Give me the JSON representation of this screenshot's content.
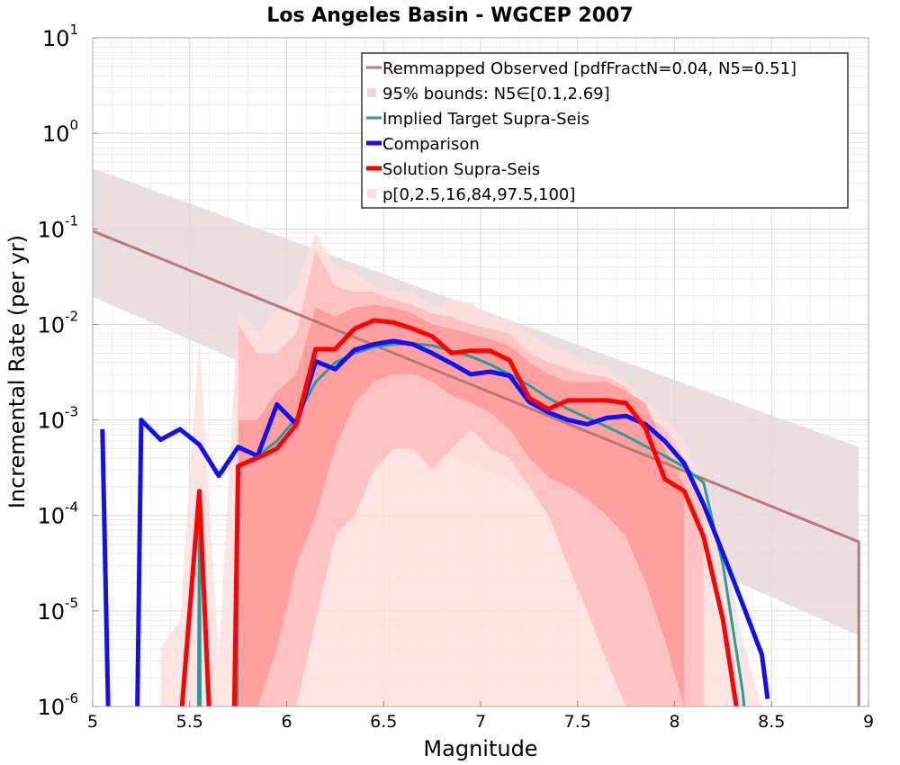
{
  "chart_data": {
    "type": "line",
    "title": "Los Angeles Basin - WGCEP 2007",
    "xlabel": "Magnitude",
    "ylabel": "Incremental Rate (per yr)",
    "xlim": [
      5,
      9
    ],
    "ylim": [
      1e-06,
      10
    ],
    "yscale": "log",
    "grid": true,
    "legend_position": "top-right",
    "x_ticks": [
      "5",
      "5.5",
      "6",
      "6.5",
      "7",
      "7.5",
      "8",
      "8.5",
      "9"
    ],
    "y_ticks": [
      {
        "base": "10",
        "exp": "-6"
      },
      {
        "base": "10",
        "exp": "-5"
      },
      {
        "base": "10",
        "exp": "-4"
      },
      {
        "base": "10",
        "exp": "-3"
      },
      {
        "base": "10",
        "exp": "-2"
      },
      {
        "base": "10",
        "exp": "-1"
      },
      {
        "base": "10",
        "exp": "0"
      },
      {
        "base": "10",
        "exp": "1"
      }
    ],
    "colors": {
      "observed": "#b87878",
      "observed_bounds": "#e8d8da",
      "target": "#2a9a9a",
      "comparison": "#1010f0",
      "overlap": "#5010c0",
      "solution": "#ff0000",
      "band_outer": "#ffdddd",
      "band_mid": "#ffb8b8",
      "band_inner": "#ff9090"
    },
    "legend": [
      {
        "label": "Remmapped Observed [pdfFractN=0.04, N5=0.51]",
        "color": "#b87878",
        "kind": "line",
        "width": 3
      },
      {
        "label": "95% bounds: N5∈[0.1,2.69]",
        "color": "#e8d8da",
        "kind": "box"
      },
      {
        "label": "Implied Target Supra-Seis",
        "color": "#2a9a9a",
        "kind": "line",
        "width": 3
      },
      {
        "label": "Comparison",
        "color": "#1010f0",
        "kind": "line",
        "width": 5
      },
      {
        "label": "Solution Supra-Seis",
        "color": "#ff0000",
        "kind": "line",
        "width": 5
      },
      {
        "label": "p[0,2.5,16,84,97.5,100]",
        "color": "#ffdddd",
        "kind": "box"
      }
    ],
    "series": [
      {
        "name": "Remmapped Observed [pdfFractN=0.04, N5=0.51]",
        "x": [
          5.0,
          8.95,
          8.95
        ],
        "y": [
          0.095,
          5.3e-05,
          5e-07
        ]
      },
      {
        "name": "95% bounds: N5∈[0.1,2.69]",
        "x": [
          5.0,
          8.95
        ],
        "y_low": [
          0.0195,
          5.5e-06
        ],
        "y_high": [
          0.43,
          0.00052
        ]
      },
      {
        "name": "Implied Target Supra-Seis",
        "x": [
          5.545,
          5.55,
          5.555,
          5.745,
          5.75,
          5.85,
          5.95,
          6.05,
          6.15,
          6.25,
          6.35,
          6.45,
          6.55,
          6.65,
          6.75,
          6.85,
          6.95,
          7.05,
          7.15,
          7.25,
          7.35,
          7.45,
          7.55,
          7.65,
          7.75,
          7.85,
          7.95,
          8.05,
          8.15,
          8.25,
          8.35,
          8.36
        ],
        "y": [
          5e-07,
          0.00015,
          5e-07,
          5e-07,
          0.00033,
          0.00042,
          0.0006,
          0.00105,
          0.0025,
          0.004,
          0.005,
          0.0058,
          0.0062,
          0.0063,
          0.006,
          0.0053,
          0.0046,
          0.0038,
          0.003,
          0.0023,
          0.0017,
          0.0013,
          0.00105,
          0.00085,
          0.00068,
          0.00053,
          0.00042,
          0.00032,
          0.00022,
          3e-05,
          1.5e-06,
          5e-07
        ]
      },
      {
        "name": "Comparison",
        "x": [
          5.05,
          5.08,
          5.23,
          5.25,
          5.35,
          5.45,
          5.55,
          5.65,
          5.75,
          5.85,
          5.95,
          6.05,
          6.15,
          6.25,
          6.35,
          6.45,
          6.55,
          6.65,
          6.75,
          6.85,
          6.95,
          7.05,
          7.15,
          7.25,
          7.35,
          7.45,
          7.55,
          7.65,
          7.75,
          7.85,
          7.95,
          8.05,
          8.15,
          8.25,
          8.35,
          8.45,
          8.48
        ],
        "y": [
          0.0008,
          5e-07,
          5e-07,
          0.001,
          0.00062,
          0.0008,
          0.00055,
          0.00026,
          0.00052,
          0.00042,
          0.00145,
          0.0009,
          0.0041,
          0.0034,
          0.0054,
          0.0062,
          0.0067,
          0.0062,
          0.005,
          0.0039,
          0.003,
          0.0032,
          0.0029,
          0.00155,
          0.0012,
          0.001,
          0.0009,
          0.00105,
          0.0011,
          0.0009,
          0.0006,
          0.00035,
          0.00013,
          4e-05,
          1.2e-05,
          3.5e-06,
          1.2e-06
        ]
      },
      {
        "name": "Solution Supra-Seis",
        "x": [
          5.46,
          5.55,
          5.6,
          5.73,
          5.75,
          5.85,
          5.95,
          6.05,
          6.15,
          6.25,
          6.35,
          6.45,
          6.55,
          6.65,
          6.75,
          6.85,
          6.95,
          7.05,
          7.15,
          7.25,
          7.35,
          7.45,
          7.55,
          7.65,
          7.75,
          7.85,
          7.95,
          8.05,
          8.15,
          8.25,
          8.32
        ],
        "y": [
          5e-07,
          0.00018,
          5e-07,
          5e-07,
          0.00033,
          0.0004,
          0.0005,
          0.0009,
          0.0055,
          0.0055,
          0.009,
          0.011,
          0.0105,
          0.009,
          0.0075,
          0.005,
          0.0053,
          0.0053,
          0.0042,
          0.0017,
          0.0013,
          0.0016,
          0.0016,
          0.0016,
          0.0015,
          0.00082,
          0.00024,
          0.00018,
          6e-05,
          8e-06,
          8e-07
        ]
      },
      {
        "name": "p[0,2.5,16,84,97.5,100]",
        "x": [
          5.35,
          5.45,
          5.55,
          5.65,
          5.75,
          5.85,
          5.95,
          6.05,
          6.15,
          6.25,
          6.35,
          6.45,
          6.55,
          6.65,
          6.75,
          6.85,
          6.95,
          7.05,
          7.15,
          7.25,
          7.35,
          7.45,
          7.55,
          7.65,
          7.75,
          7.85,
          7.95,
          8.05,
          8.15,
          8.25,
          8.35,
          8.45
        ],
        "y_low": [
          1e-06,
          1e-06,
          1e-06,
          1e-06,
          1e-06,
          1e-06,
          1e-06,
          1e-06,
          1e-06,
          1e-06,
          1e-06,
          1e-06,
          1e-06,
          1e-06,
          1e-06,
          1e-06,
          1e-06,
          1e-06,
          1e-06,
          1e-06,
          1e-06,
          1e-06,
          1e-06,
          1e-06,
          1e-06,
          1e-06,
          1e-06,
          1e-06,
          1e-06,
          1e-06,
          1e-06,
          1e-06
        ],
        "y_high": [
          4e-06,
          8e-06,
          0.007,
          3e-06,
          0.015,
          0.008,
          0.014,
          0.024,
          0.09,
          0.04,
          0.035,
          0.025,
          0.022,
          0.022,
          0.015,
          0.018,
          0.017,
          0.012,
          0.011,
          0.008,
          0.006,
          0.005,
          0.004,
          0.0035,
          0.0025,
          0.0015,
          0.001,
          0.0006,
          0.0002,
          5e-05,
          5e-06,
          1e-06
        ]
      }
    ],
    "bands": {
      "outer": {
        "x": [
          5.35,
          5.45,
          5.55,
          5.65,
          5.75,
          5.85,
          5.95,
          6.05,
          6.15,
          6.25,
          6.35,
          6.45,
          6.55,
          6.65,
          6.75,
          6.85,
          6.95,
          7.05,
          7.15,
          7.25,
          7.35,
          7.45,
          7.55,
          7.65,
          7.75,
          7.85,
          7.95,
          8.05,
          8.15,
          8.25,
          8.35,
          8.45
        ],
        "low": [
          1e-06,
          1e-06,
          1e-06,
          1e-06,
          1e-06,
          1e-06,
          1e-06,
          1e-06,
          1e-06,
          1e-06,
          1e-06,
          1e-06,
          1e-06,
          1e-06,
          1e-06,
          1e-06,
          1e-06,
          1e-06,
          1e-06,
          1e-06,
          1e-06,
          1e-06,
          1e-06,
          1e-06,
          1e-06,
          1e-06,
          1e-06,
          1e-06,
          1e-06,
          1e-06,
          1e-06,
          1e-06
        ],
        "high": [
          4e-06,
          8e-06,
          0.007,
          3e-06,
          0.015,
          0.008,
          0.014,
          0.024,
          0.09,
          0.04,
          0.035,
          0.025,
          0.022,
          0.022,
          0.015,
          0.018,
          0.017,
          0.012,
          0.011,
          0.008,
          0.006,
          0.005,
          0.004,
          0.0035,
          0.0025,
          0.0015,
          0.001,
          0.0006,
          0.0002,
          5e-05,
          5e-06,
          1e-06
        ]
      },
      "mid": {
        "x": [
          5.75,
          5.85,
          5.95,
          6.05,
          6.15,
          6.25,
          6.35,
          6.45,
          6.55,
          6.65,
          6.75,
          6.85,
          6.95,
          7.05,
          7.15,
          7.25,
          7.35,
          7.45,
          7.55,
          7.65,
          7.75,
          7.85,
          7.95,
          8.05,
          8.15
        ],
        "low": [
          1e-06,
          1e-06,
          1e-06,
          1e-06,
          8e-06,
          6e-05,
          0.0001,
          0.0003,
          0.0005,
          0.0005,
          0.0003,
          0.0005,
          0.0008,
          0.0005,
          0.0004,
          0.0002,
          0.0001,
          3e-05,
          1e-05,
          3e-06,
          1e-06,
          1e-06,
          1e-06,
          1e-06,
          1e-06
        ],
        "high": [
          0.01,
          0.005,
          0.005,
          0.008,
          0.06,
          0.025,
          0.022,
          0.022,
          0.018,
          0.016,
          0.013,
          0.012,
          0.01,
          0.009,
          0.008,
          0.005,
          0.004,
          0.0035,
          0.003,
          0.0028,
          0.0022,
          0.0012,
          0.0008,
          0.0004,
          0.0001
        ]
      },
      "inner": {
        "x": [
          5.75,
          5.85,
          5.95,
          6.05,
          6.15,
          6.25,
          6.35,
          6.45,
          6.55,
          6.65,
          6.75,
          6.85,
          6.95,
          7.05,
          7.15,
          7.25,
          7.35,
          7.45,
          7.55,
          7.65,
          7.75,
          7.85,
          7.95,
          8.05
        ],
        "low": [
          1e-06,
          1e-06,
          4e-06,
          3e-05,
          0.0001,
          0.0005,
          0.0015,
          0.0025,
          0.003,
          0.003,
          0.0025,
          0.0018,
          0.0015,
          0.0012,
          0.0008,
          0.0004,
          0.00025,
          0.0002,
          0.00015,
          0.0001,
          6e-05,
          2e-05,
          5e-06,
          1e-06
        ],
        "high": [
          0.001,
          0.001,
          0.002,
          0.003,
          0.015,
          0.012,
          0.015,
          0.016,
          0.015,
          0.013,
          0.01,
          0.009,
          0.008,
          0.007,
          0.006,
          0.004,
          0.003,
          0.0025,
          0.0025,
          0.0025,
          0.002,
          0.0015,
          0.0005,
          0.0002
        ]
      }
    }
  }
}
